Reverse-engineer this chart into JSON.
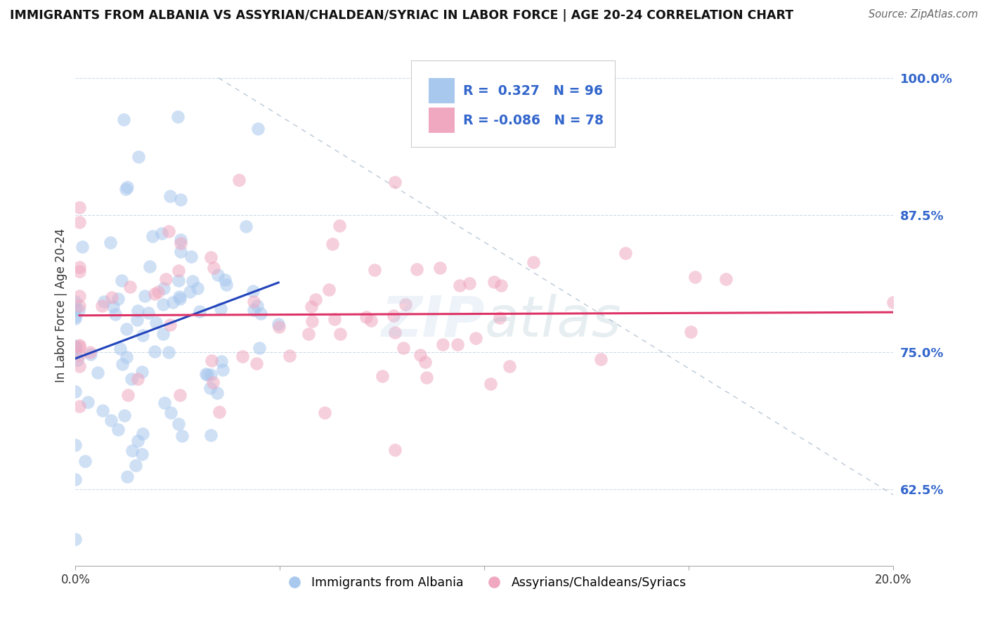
{
  "title": "IMMIGRANTS FROM ALBANIA VS ASSYRIAN/CHALDEAN/SYRIAC IN LABOR FORCE | AGE 20-24 CORRELATION CHART",
  "source": "Source: ZipAtlas.com",
  "ylabel": "In Labor Force | Age 20-24",
  "xlim": [
    0.0,
    0.2
  ],
  "ylim": [
    0.555,
    1.03
  ],
  "yticks": [
    0.625,
    0.75,
    0.875,
    1.0
  ],
  "ytick_labels": [
    "62.5%",
    "75.0%",
    "87.5%",
    "100.0%"
  ],
  "xticks": [
    0.0,
    0.05,
    0.1,
    0.15,
    0.2
  ],
  "xtick_labels": [
    "0.0%",
    "",
    "",
    "",
    "20.0%"
  ],
  "R_albania": 0.327,
  "N_albania": 96,
  "R_assyrian": -0.086,
  "N_assyrian": 78,
  "albania_color": "#a8c8ee",
  "assyrian_color": "#f0a8c0",
  "trend_albania_color": "#2244bb",
  "trend_assyrian_color": "#dd3366",
  "diag_color": "#aabbcc",
  "background_color": "#ffffff",
  "seed": 42,
  "legend_entries": [
    {
      "label": "Immigrants from Albania"
    },
    {
      "label": "Assyrians/Chaldeans/Syriacs"
    }
  ]
}
